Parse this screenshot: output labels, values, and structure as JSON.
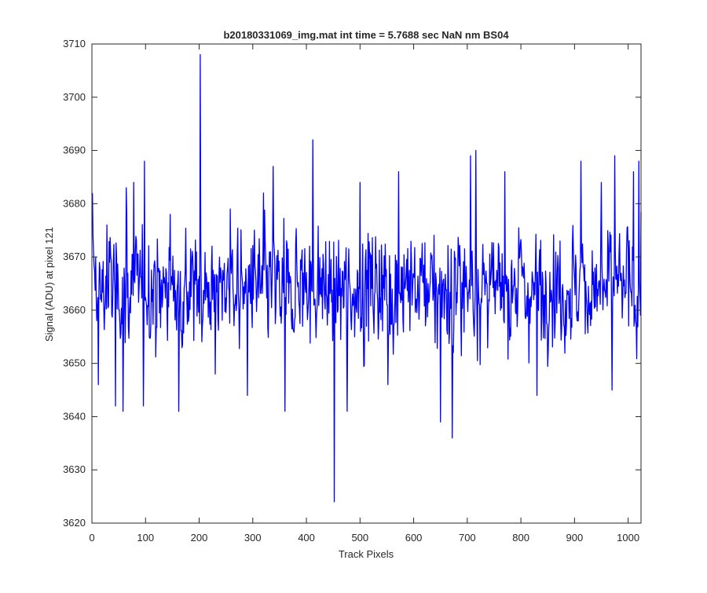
{
  "chart_data": {
    "type": "line",
    "title": "b20180331069_img.mat int time = 5.7688 sec  NaN nm BS04",
    "xlabel": "Track Pixels",
    "ylabel": "Signal (ADU) at pixel 121",
    "xlim": [
      0,
      1024
    ],
    "ylim": [
      3620,
      3710
    ],
    "xticks": [
      0,
      100,
      200,
      300,
      400,
      500,
      600,
      700,
      800,
      900,
      1000
    ],
    "yticks": [
      3620,
      3630,
      3640,
      3650,
      3660,
      3670,
      3680,
      3690,
      3700,
      3710
    ],
    "grid": false,
    "legend": "none",
    "series": [
      {
        "color": "#0000ff",
        "x_start": 1,
        "x_step": 1,
        "summary": {
          "n": 1024,
          "mean": 3664,
          "min": 3624,
          "min_x": 452,
          "max": 3708,
          "max_x": 202
        },
        "features": [
          {
            "x": 1,
            "y": 3682
          },
          {
            "x": 12,
            "y": 3646
          },
          {
            "x": 28,
            "y": 3676
          },
          {
            "x": 44,
            "y": 3642
          },
          {
            "x": 58,
            "y": 3641
          },
          {
            "x": 64,
            "y": 3683
          },
          {
            "x": 78,
            "y": 3684
          },
          {
            "x": 96,
            "y": 3642
          },
          {
            "x": 98,
            "y": 3688
          },
          {
            "x": 146,
            "y": 3678
          },
          {
            "x": 162,
            "y": 3641
          },
          {
            "x": 202,
            "y": 3708
          },
          {
            "x": 230,
            "y": 3648
          },
          {
            "x": 258,
            "y": 3679
          },
          {
            "x": 290,
            "y": 3644
          },
          {
            "x": 320,
            "y": 3682
          },
          {
            "x": 338,
            "y": 3687
          },
          {
            "x": 360,
            "y": 3641
          },
          {
            "x": 412,
            "y": 3692
          },
          {
            "x": 452,
            "y": 3624
          },
          {
            "x": 476,
            "y": 3641
          },
          {
            "x": 500,
            "y": 3684
          },
          {
            "x": 552,
            "y": 3646
          },
          {
            "x": 572,
            "y": 3686
          },
          {
            "x": 650,
            "y": 3639
          },
          {
            "x": 672,
            "y": 3636
          },
          {
            "x": 706,
            "y": 3689
          },
          {
            "x": 716,
            "y": 3690
          },
          {
            "x": 770,
            "y": 3686
          },
          {
            "x": 830,
            "y": 3644
          },
          {
            "x": 912,
            "y": 3688
          },
          {
            "x": 950,
            "y": 3684
          },
          {
            "x": 970,
            "y": 3645
          },
          {
            "x": 975,
            "y": 3689
          },
          {
            "x": 1010,
            "y": 3686
          },
          {
            "x": 1020,
            "y": 3688
          }
        ]
      }
    ]
  }
}
